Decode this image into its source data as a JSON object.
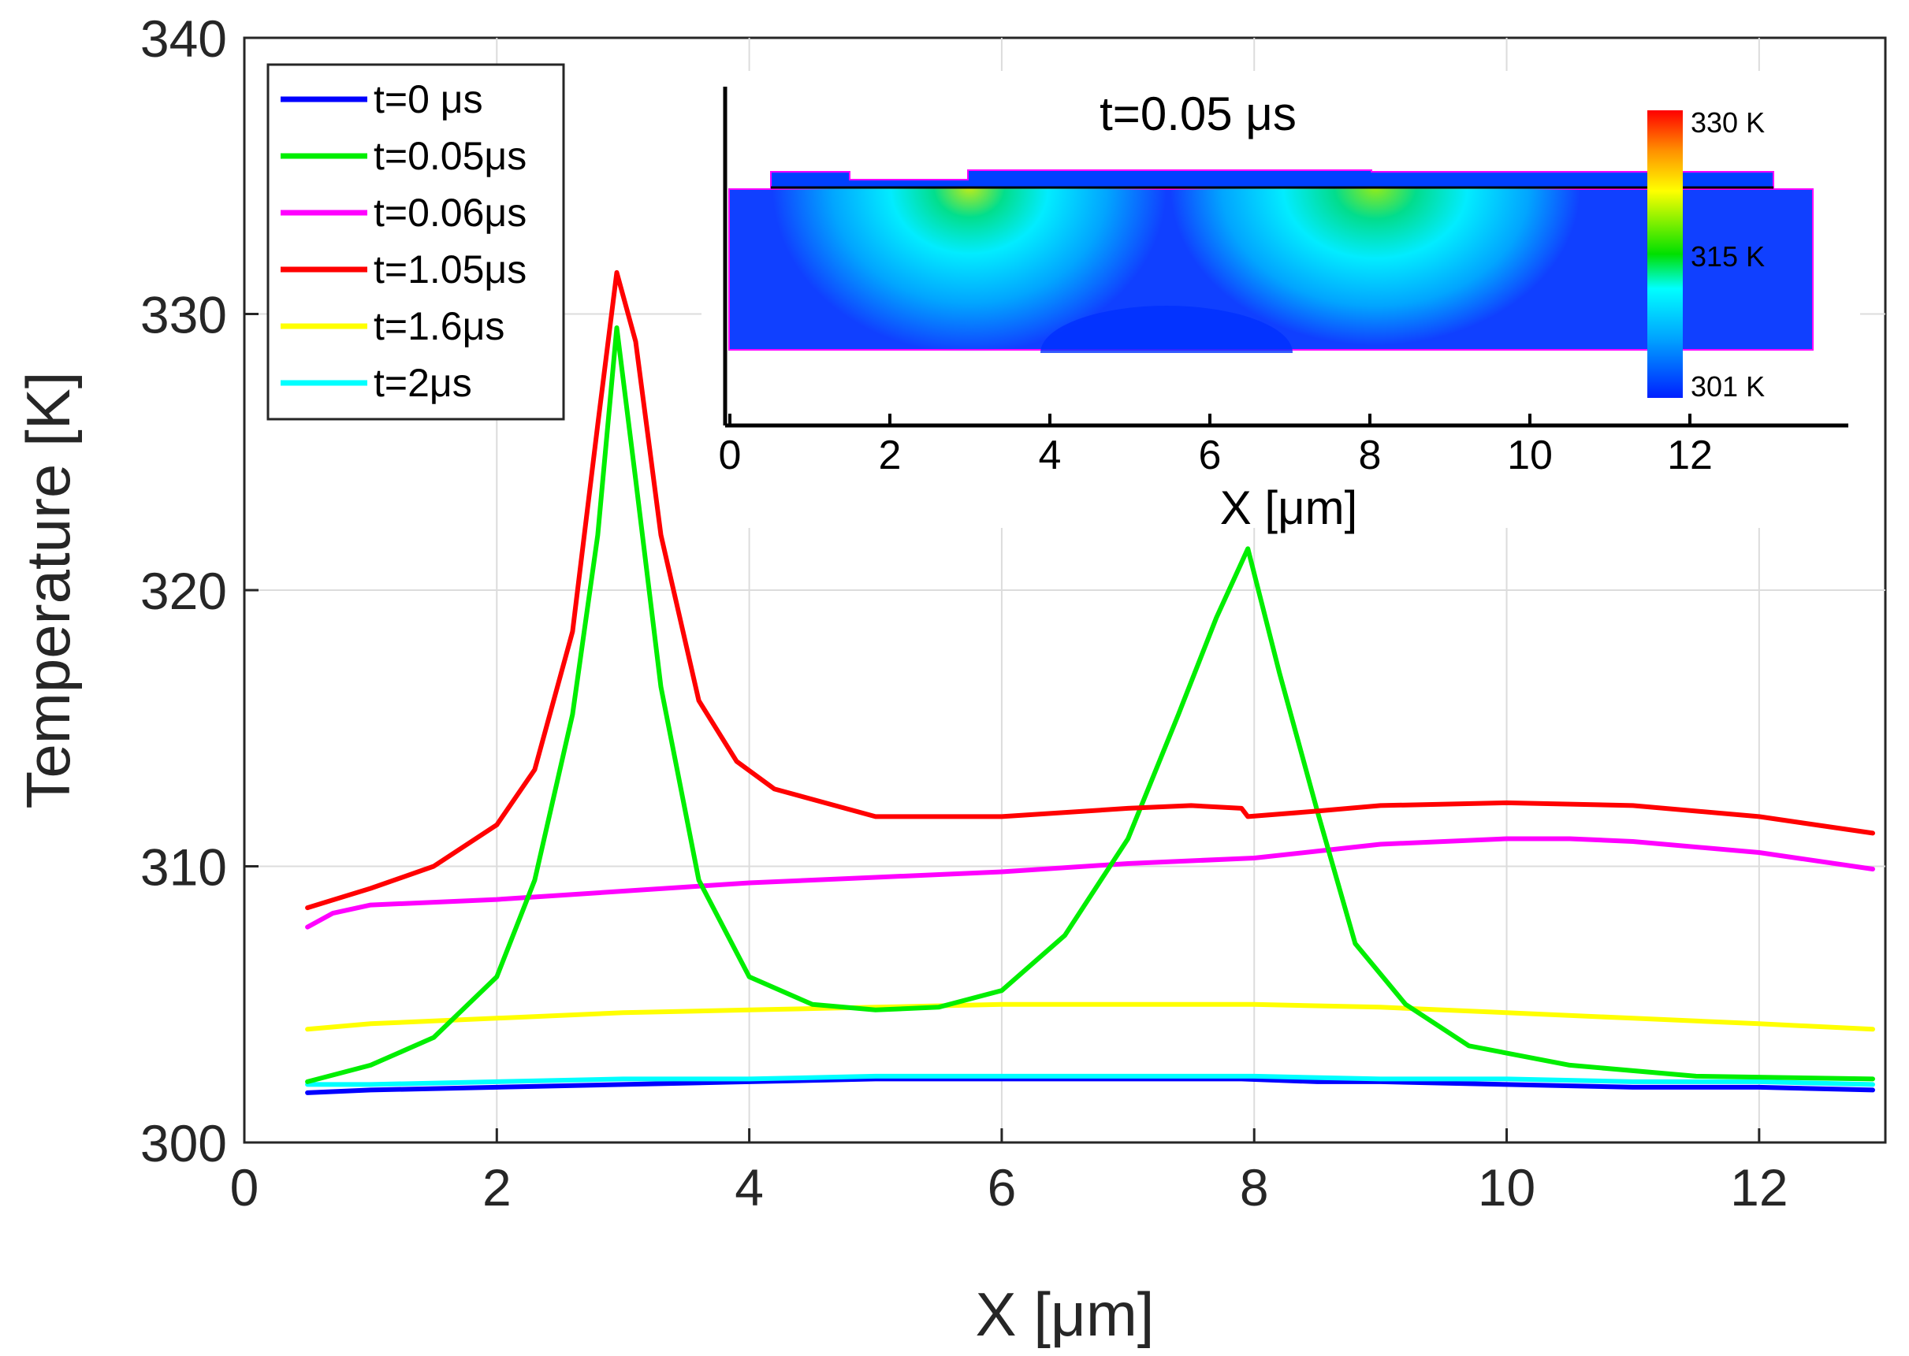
{
  "chart_data": {
    "type": "line",
    "title": "",
    "xlabel": "X [μm]",
    "ylabel": "Temperature [K]",
    "xlim": [
      0,
      13
    ],
    "ylim": [
      300,
      340
    ],
    "xticks": [
      "0",
      "2",
      "4",
      "6",
      "8",
      "10",
      "12"
    ],
    "yticks": [
      "300",
      "310",
      "320",
      "330",
      "340"
    ],
    "grid": true,
    "legend_position": "top-left",
    "series": [
      {
        "name": "t=0 μs",
        "color": "#0000ff",
        "x": [
          0.5,
          1,
          2,
          3,
          4,
          5,
          6,
          7,
          7.9,
          8.5,
          9,
          10,
          11,
          12,
          12.9
        ],
        "y": [
          301.8,
          301.9,
          302.0,
          302.1,
          302.2,
          302.3,
          302.3,
          302.3,
          302.3,
          302.2,
          302.2,
          302.1,
          302.0,
          302.0,
          301.9
        ]
      },
      {
        "name": "t=0.05μs",
        "color": "#00ee00",
        "x": [
          0.5,
          1,
          1.5,
          2,
          2.3,
          2.6,
          2.8,
          2.95,
          3.1,
          3.3,
          3.6,
          4,
          4.5,
          5,
          5.5,
          6,
          6.5,
          7,
          7.4,
          7.7,
          7.95,
          8.2,
          8.5,
          8.8,
          9.2,
          9.7,
          10.5,
          11.5,
          12.9
        ],
        "y": [
          302.2,
          302.8,
          303.8,
          306.0,
          309.5,
          315.5,
          322.0,
          329.5,
          324.0,
          316.5,
          309.5,
          306.0,
          305.0,
          304.8,
          304.9,
          305.5,
          307.5,
          311.0,
          315.5,
          319.0,
          321.5,
          317.0,
          312.0,
          307.2,
          305.0,
          303.5,
          302.8,
          302.4,
          302.3
        ]
      },
      {
        "name": "t=0.06μs",
        "color": "#ff00ff",
        "x": [
          0.5,
          0.7,
          1,
          2,
          3,
          4,
          5,
          6,
          7,
          8,
          9,
          10,
          10.5,
          11,
          12,
          12.9
        ],
        "y": [
          307.8,
          308.3,
          308.6,
          308.8,
          309.1,
          309.4,
          309.6,
          309.8,
          310.1,
          310.3,
          310.8,
          311.0,
          311.0,
          310.9,
          310.5,
          309.9
        ]
      },
      {
        "name": "t=1.05μs",
        "color": "#ff0000",
        "x": [
          0.5,
          1,
          1.5,
          2,
          2.3,
          2.6,
          2.8,
          2.95,
          3.1,
          3.3,
          3.6,
          3.9,
          4.2,
          5,
          6,
          7,
          7.5,
          7.9,
          7.95,
          8.5,
          9,
          10,
          11,
          12,
          12.9
        ],
        "y": [
          308.5,
          309.2,
          310.0,
          311.5,
          313.5,
          318.5,
          326.0,
          331.5,
          329.0,
          322.0,
          316.0,
          313.8,
          312.8,
          311.8,
          311.8,
          312.1,
          312.2,
          312.1,
          311.8,
          312.0,
          312.2,
          312.3,
          312.2,
          311.8,
          311.2
        ]
      },
      {
        "name": "t=1.6μs",
        "color": "#ffff00",
        "x": [
          0.5,
          1,
          2,
          3,
          4,
          5,
          6,
          7,
          8,
          9,
          10,
          11,
          12,
          12.9
        ],
        "y": [
          304.1,
          304.3,
          304.5,
          304.7,
          304.8,
          304.9,
          305.0,
          305.0,
          305.0,
          304.9,
          304.7,
          304.5,
          304.3,
          304.1
        ]
      },
      {
        "name": "t=2μs",
        "color": "#00ffff",
        "x": [
          0.5,
          1,
          2,
          3,
          4,
          5,
          6,
          7,
          8,
          9,
          10,
          11,
          12,
          12.9
        ],
        "y": [
          302.1,
          302.1,
          302.2,
          302.3,
          302.3,
          302.4,
          302.4,
          302.4,
          302.4,
          302.3,
          302.3,
          302.2,
          302.2,
          302.1
        ]
      }
    ],
    "inset": {
      "title": "t=0.05 μs",
      "xlabel": "X [μm]",
      "xticks": [
        "0",
        "2",
        "4",
        "6",
        "8",
        "10",
        "12"
      ],
      "colorbar_labels": [
        "330 K",
        "315 K",
        "301 K"
      ]
    }
  }
}
